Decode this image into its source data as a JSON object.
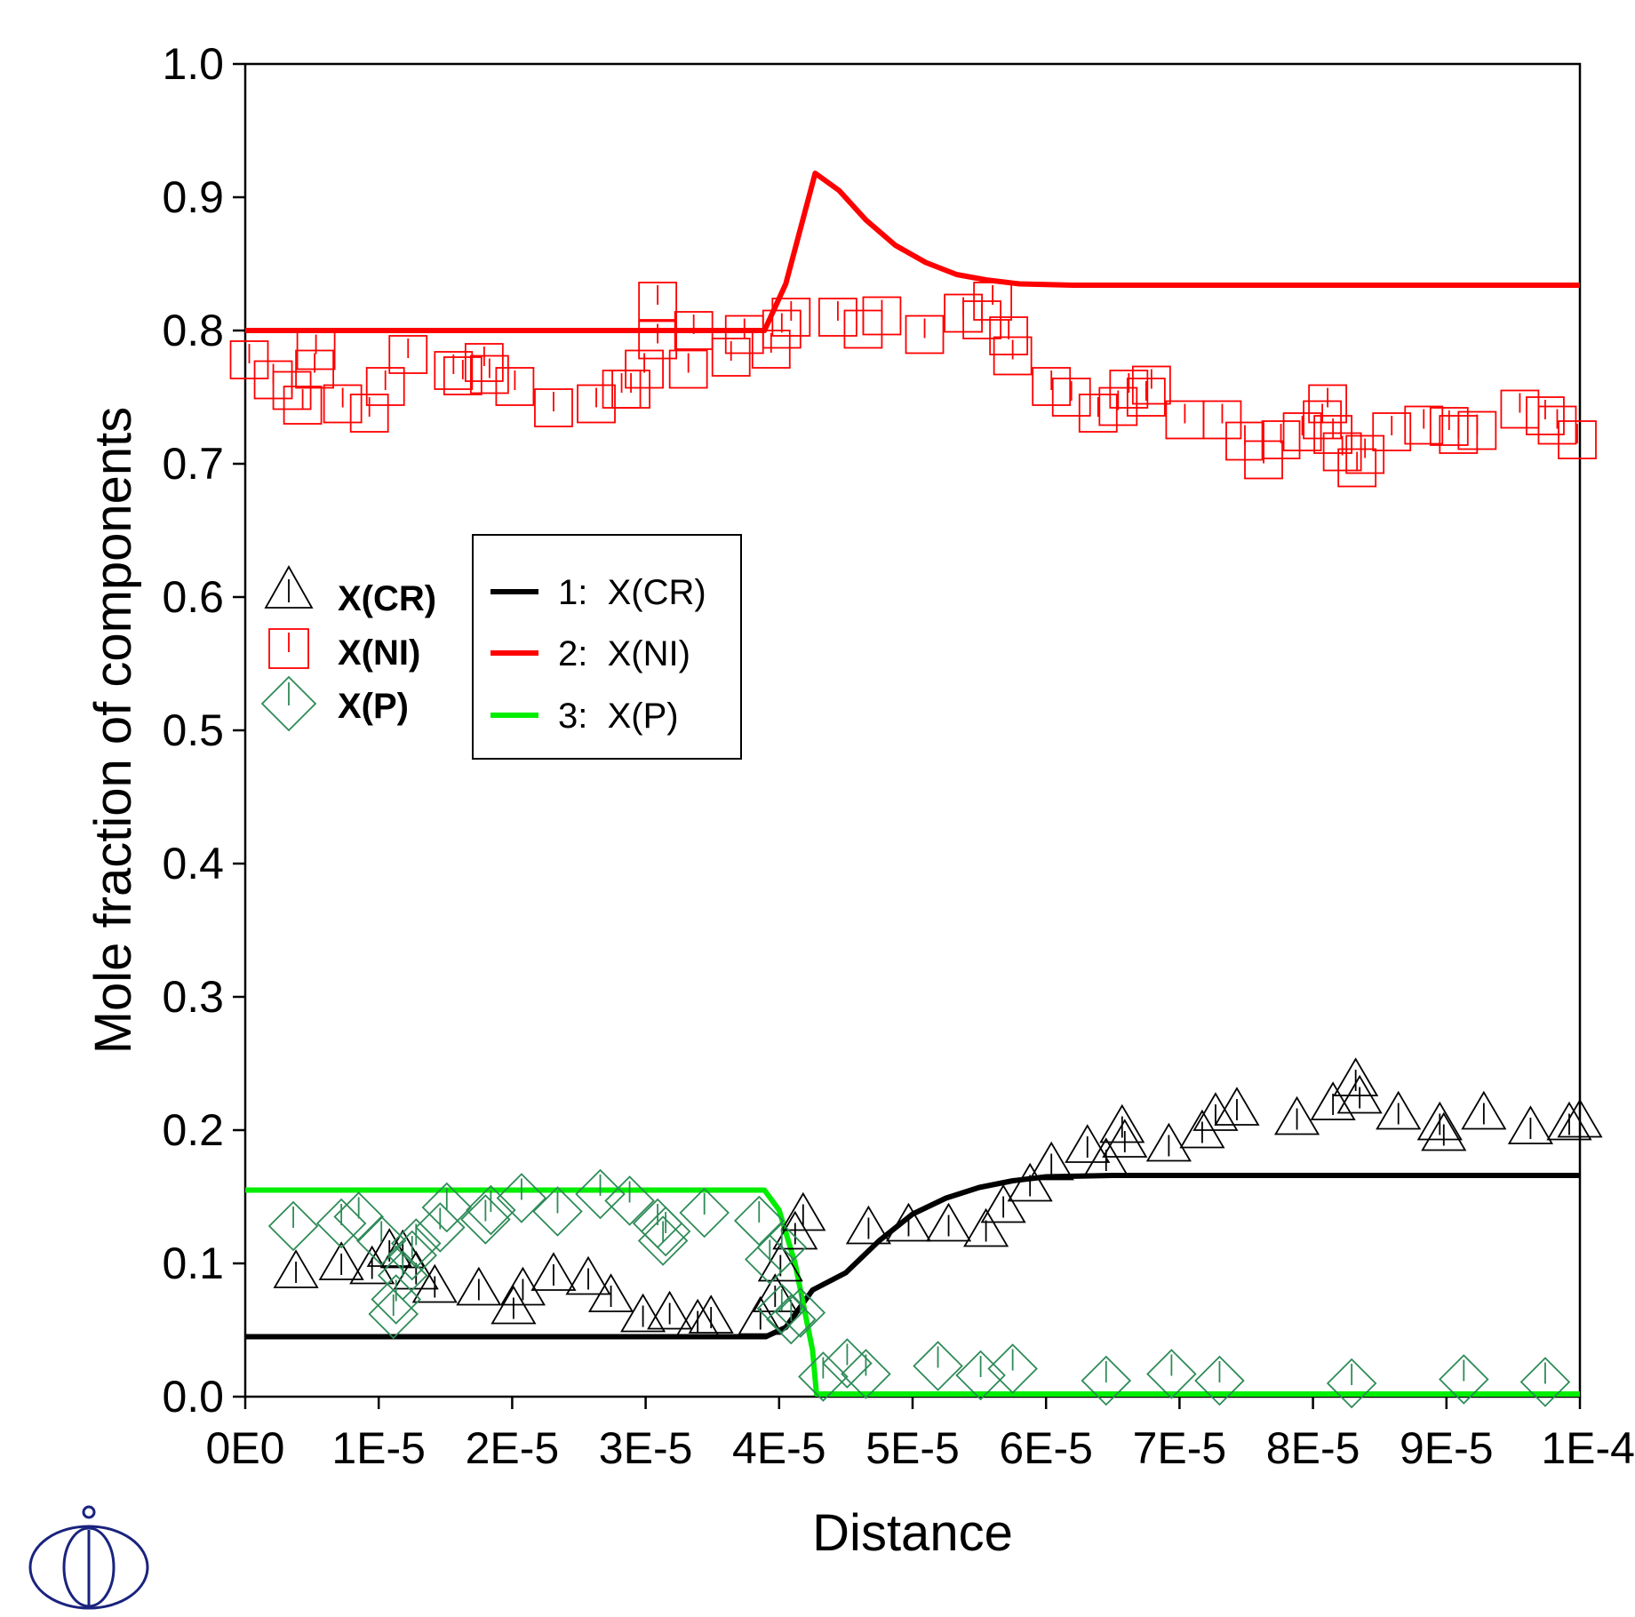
{
  "chart_data": {
    "type": "scatter",
    "title": "",
    "xlabel": "Distance",
    "ylabel": "Mole fraction of components",
    "xlim": [
      0,
      0.0001
    ],
    "ylim": [
      0,
      1.0
    ],
    "grid": false,
    "x_ticks": [
      {
        "value": 0,
        "label": "0E0"
      },
      {
        "value": 1e-05,
        "label": "1E-5"
      },
      {
        "value": 2e-05,
        "label": "2E-5"
      },
      {
        "value": 3e-05,
        "label": "3E-5"
      },
      {
        "value": 4e-05,
        "label": "4E-5"
      },
      {
        "value": 5e-05,
        "label": "5E-5"
      },
      {
        "value": 6e-05,
        "label": "6E-5"
      },
      {
        "value": 7e-05,
        "label": "7E-5"
      },
      {
        "value": 8e-05,
        "label": "8E-5"
      },
      {
        "value": 9e-05,
        "label": "9E-5"
      },
      {
        "value": 0.0001,
        "label": "1E-4"
      }
    ],
    "y_ticks": [
      {
        "value": 0.0,
        "label": "0.0"
      },
      {
        "value": 0.1,
        "label": "0.1"
      },
      {
        "value": 0.2,
        "label": "0.2"
      },
      {
        "value": 0.3,
        "label": "0.3"
      },
      {
        "value": 0.4,
        "label": "0.4"
      },
      {
        "value": 0.5,
        "label": "0.5"
      },
      {
        "value": 0.6,
        "label": "0.6"
      },
      {
        "value": 0.7,
        "label": "0.7"
      },
      {
        "value": 0.8,
        "label": "0.8"
      },
      {
        "value": 0.9,
        "label": "0.9"
      },
      {
        "value": 1.0,
        "label": "1.0"
      }
    ],
    "legend_symbols": {
      "placement": "left",
      "entries": [
        {
          "marker": "triangle-icon",
          "label": "X(CR)",
          "color": "#000000"
        },
        {
          "marker": "square-icon",
          "label": "X(NI)",
          "color": "#ff0000"
        },
        {
          "marker": "diamond-icon",
          "label": "X(P)",
          "color": "#2e8b57"
        }
      ]
    },
    "legend_lines": {
      "placement": "center-left",
      "entries": [
        {
          "label": "1:  X(CR)",
          "color": "#000000"
        },
        {
          "label": "2:  X(NI)",
          "color": "#ff0000"
        },
        {
          "label": "3:  X(P)",
          "color": "#00ee00"
        }
      ]
    },
    "lines": [
      {
        "label": "1:  X(CR)",
        "color": "#000000",
        "x": [
          0,
          3.9e-05,
          4.05e-05,
          4.25e-05,
          4.5e-05,
          4.75e-05,
          5e-05,
          5.25e-05,
          5.5e-05,
          5.75e-05,
          6e-05,
          6.5e-05,
          0.0001
        ],
        "y": [
          0.045,
          0.045,
          0.052,
          0.08,
          0.093,
          0.117,
          0.137,
          0.149,
          0.157,
          0.162,
          0.165,
          0.166,
          0.166
        ]
      },
      {
        "label": "2:  X(NI)",
        "color": "#ff0000",
        "x": [
          0,
          3.89e-05,
          4.05e-05,
          4.27e-05,
          4.45e-05,
          4.65e-05,
          4.87e-05,
          5.1e-05,
          5.33e-05,
          5.55e-05,
          5.8e-05,
          6.2e-05,
          0.0001
        ],
        "y": [
          0.8,
          0.8,
          0.835,
          0.918,
          0.905,
          0.883,
          0.864,
          0.851,
          0.842,
          0.838,
          0.835,
          0.834,
          0.834
        ]
      },
      {
        "label": "3:  X(P)",
        "color": "#00ee00",
        "x": [
          0,
          3.89e-05,
          4e-05,
          4.12e-05,
          4.25e-05,
          4.28e-05,
          0.0001
        ],
        "y": [
          0.155,
          0.155,
          0.14,
          0.1,
          0.035,
          0.002,
          0.002
        ]
      }
    ],
    "series": [
      {
        "label": "X(CR)",
        "marker": "triangle-icon",
        "color": "#000000",
        "points": [
          [
            3.8e-06,
            0.092
          ],
          [
            7.2e-06,
            0.098
          ],
          [
            9.5e-06,
            0.095
          ],
          [
            1.08e-05,
            0.108
          ],
          [
            1.18e-05,
            0.107
          ],
          [
            1.28e-05,
            0.091
          ],
          [
            1.42e-05,
            0.081
          ],
          [
            1.75e-05,
            0.079
          ],
          [
            2.01e-05,
            0.065
          ],
          [
            2.08e-05,
            0.079
          ],
          [
            2.31e-05,
            0.09
          ],
          [
            2.57e-05,
            0.087
          ],
          [
            2.74e-05,
            0.074
          ],
          [
            2.98e-05,
            0.059
          ],
          [
            3.18e-05,
            0.061
          ],
          [
            3.39e-05,
            0.055
          ],
          [
            3.49e-05,
            0.058
          ],
          [
            3.86e-05,
            0.057
          ],
          [
            3.97e-05,
            0.074
          ],
          [
            4.01e-05,
            0.097
          ],
          [
            4.12e-05,
            0.121
          ],
          [
            4.18e-05,
            0.135
          ],
          [
            4.67e-05,
            0.125
          ],
          [
            4.97e-05,
            0.127
          ],
          [
            5.27e-05,
            0.127
          ],
          [
            5.55e-05,
            0.123
          ],
          [
            5.68e-05,
            0.141
          ],
          [
            5.88e-05,
            0.157
          ],
          [
            6.04e-05,
            0.173
          ],
          [
            6.31e-05,
            0.186
          ],
          [
            6.45e-05,
            0.176
          ],
          [
            6.57e-05,
            0.201
          ],
          [
            6.59e-05,
            0.19
          ],
          [
            6.92e-05,
            0.187
          ],
          [
            7.17e-05,
            0.197
          ],
          [
            7.27e-05,
            0.21
          ],
          [
            7.43e-05,
            0.214
          ],
          [
            7.88e-05,
            0.207
          ],
          [
            8.15e-05,
            0.218
          ],
          [
            8.32e-05,
            0.236
          ],
          [
            8.35e-05,
            0.223
          ],
          [
            8.64e-05,
            0.211
          ],
          [
            8.95e-05,
            0.203
          ],
          [
            8.98e-05,
            0.195
          ],
          [
            9.28e-05,
            0.211
          ],
          [
            9.63e-05,
            0.2
          ],
          [
            9.92e-05,
            0.203
          ],
          [
            0.0001,
            0.205
          ]
        ]
      },
      {
        "label": "X(NI)",
        "marker": "square-icon",
        "color": "#ff0000",
        "points": [
          [
            3e-07,
            0.778
          ],
          [
            2.1e-06,
            0.763
          ],
          [
            3.5e-06,
            0.755
          ],
          [
            4.3e-06,
            0.744
          ],
          [
            5.2e-06,
            0.771
          ],
          [
            5.3e-06,
            0.785
          ],
          [
            7.3e-06,
            0.745
          ],
          [
            9.3e-06,
            0.738
          ],
          [
            1.05e-05,
            0.758
          ],
          [
            1.22e-05,
            0.782
          ],
          [
            1.56e-05,
            0.77
          ],
          [
            1.63e-05,
            0.766
          ],
          [
            1.79e-05,
            0.776
          ],
          [
            1.83e-05,
            0.767
          ],
          [
            2.02e-05,
            0.758
          ],
          [
            2.31e-05,
            0.742
          ],
          [
            2.63e-05,
            0.745
          ],
          [
            2.82e-05,
            0.756
          ],
          [
            2.89e-05,
            0.756
          ],
          [
            2.99e-05,
            0.771
          ],
          [
            3.09e-05,
            0.793
          ],
          [
            3.09e-05,
            0.822
          ],
          [
            3.32e-05,
            0.771
          ],
          [
            3.36e-05,
            0.8
          ],
          [
            3.64e-05,
            0.78
          ],
          [
            3.74e-05,
            0.797
          ],
          [
            3.94e-05,
            0.786
          ],
          [
            4.02e-05,
            0.801
          ],
          [
            4.09e-05,
            0.81
          ],
          [
            4.44e-05,
            0.81
          ],
          [
            4.63e-05,
            0.801
          ],
          [
            4.77e-05,
            0.811
          ],
          [
            5.09e-05,
            0.797
          ],
          [
            5.38e-05,
            0.813
          ],
          [
            5.52e-05,
            0.808
          ],
          [
            5.6e-05,
            0.822
          ],
          [
            5.72e-05,
            0.796
          ],
          [
            5.75e-05,
            0.781
          ],
          [
            6.04e-05,
            0.758
          ],
          [
            6.19e-05,
            0.75
          ],
          [
            6.39e-05,
            0.738
          ],
          [
            6.54e-05,
            0.743
          ],
          [
            6.62e-05,
            0.756
          ],
          [
            6.75e-05,
            0.75
          ],
          [
            6.79e-05,
            0.759
          ],
          [
            7.04e-05,
            0.733
          ],
          [
            7.32e-05,
            0.733
          ],
          [
            7.49e-05,
            0.717
          ],
          [
            7.63e-05,
            0.703
          ],
          [
            7.76e-05,
            0.718
          ],
          [
            7.92e-05,
            0.724
          ],
          [
            8.07e-05,
            0.733
          ],
          [
            8.11e-05,
            0.745
          ],
          [
            8.15e-05,
            0.722
          ],
          [
            8.22e-05,
            0.709
          ],
          [
            8.33e-05,
            0.697
          ],
          [
            8.39e-05,
            0.707
          ],
          [
            8.59e-05,
            0.724
          ],
          [
            8.83e-05,
            0.729
          ],
          [
            9.02e-05,
            0.728
          ],
          [
            9.09e-05,
            0.722
          ],
          [
            9.23e-05,
            0.725
          ],
          [
            9.55e-05,
            0.741
          ],
          [
            9.74e-05,
            0.736
          ],
          [
            9.83e-05,
            0.729
          ],
          [
            9.98e-05,
            0.718
          ]
        ]
      },
      {
        "label": "X(P)",
        "marker": "diamond-icon",
        "color": "#2e8b57",
        "points": [
          [
            3.6e-06,
            0.128
          ],
          [
            7.2e-06,
            0.13
          ],
          [
            8.5e-06,
            0.135
          ],
          [
            1.02e-05,
            0.117
          ],
          [
            1.11e-05,
            0.062
          ],
          [
            1.13e-05,
            0.073
          ],
          [
            1.18e-05,
            0.091
          ],
          [
            1.25e-05,
            0.106
          ],
          [
            1.28e-05,
            0.115
          ],
          [
            1.46e-05,
            0.127
          ],
          [
            1.51e-05,
            0.142
          ],
          [
            1.8e-05,
            0.133
          ],
          [
            1.84e-05,
            0.14
          ],
          [
            2.07e-05,
            0.149
          ],
          [
            2.34e-05,
            0.139
          ],
          [
            2.66e-05,
            0.152
          ],
          [
            2.88e-05,
            0.147
          ],
          [
            3.09e-05,
            0.13
          ],
          [
            3.13e-05,
            0.117
          ],
          [
            3.15e-05,
            0.124
          ],
          [
            3.44e-05,
            0.138
          ],
          [
            3.85e-05,
            0.132
          ],
          [
            3.93e-05,
            0.103
          ],
          [
            4.02e-05,
            0.112
          ],
          [
            4.02e-05,
            0.066
          ],
          [
            4.09e-05,
            0.058
          ],
          [
            4.16e-05,
            0.063
          ],
          [
            4.33e-05,
            0.015
          ],
          [
            4.51e-05,
            0.025
          ],
          [
            4.65e-05,
            0.017
          ],
          [
            5.19e-05,
            0.023
          ],
          [
            5.51e-05,
            0.016
          ],
          [
            5.75e-05,
            0.021
          ],
          [
            6.45e-05,
            0.012
          ],
          [
            6.94e-05,
            0.017
          ],
          [
            7.3e-05,
            0.012
          ],
          [
            8.29e-05,
            0.01
          ],
          [
            9.13e-05,
            0.013
          ],
          [
            9.74e-05,
            0.011
          ]
        ]
      }
    ]
  }
}
